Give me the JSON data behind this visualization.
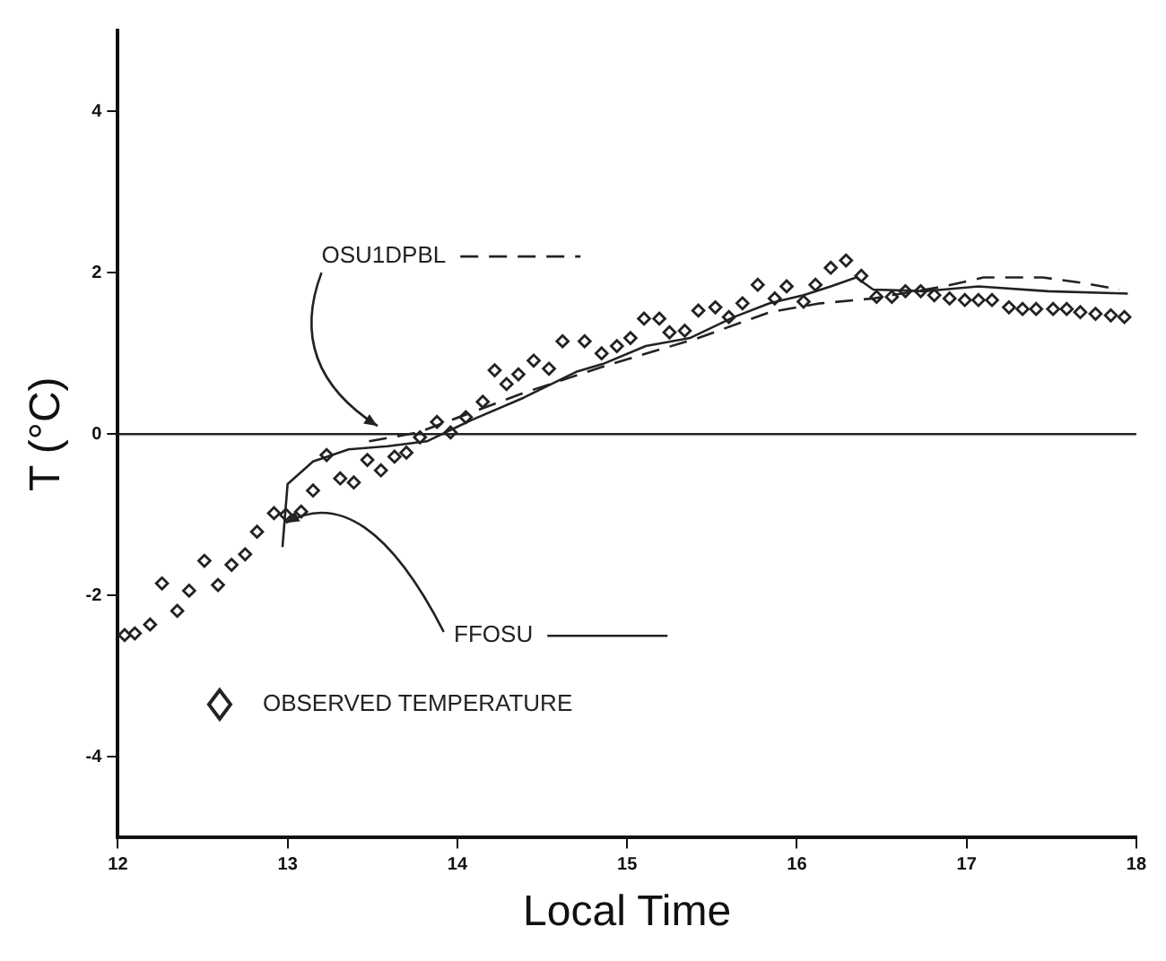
{
  "chart_data": {
    "type": "scatter",
    "xlabel": "Local Time",
    "ylabel": "T (°C)",
    "xlim": [
      12,
      18
    ],
    "xticks": [
      12,
      13,
      14,
      15,
      16,
      17,
      18
    ],
    "ylim": [
      -5,
      5
    ],
    "yticks": [
      -4,
      -2,
      0,
      2,
      4
    ],
    "grid": false,
    "ref_lines": [
      {
        "axis": "y",
        "value": 0,
        "color": "#222222"
      }
    ],
    "series": [
      {
        "name": "OSU1DPBL",
        "type": "line",
        "line_style": "dashed",
        "marker": "none",
        "color": "#222222",
        "x": [
          13.48,
          13.77,
          14.39,
          14.91,
          15.42,
          15.84,
          16.14,
          16.45,
          16.87,
          17.1,
          17.45,
          17.69,
          17.9
        ],
        "values": [
          -0.09,
          0.02,
          0.51,
          0.87,
          1.19,
          1.51,
          1.62,
          1.68,
          1.83,
          1.94,
          1.94,
          1.87,
          1.79
        ]
      },
      {
        "name": "FFOSU",
        "type": "line",
        "line_style": "solid",
        "marker": "none",
        "color": "#222222",
        "x": [
          12.97,
          13.0,
          13.15,
          13.36,
          13.59,
          13.82,
          14.08,
          14.39,
          14.7,
          14.86,
          15.11,
          15.37,
          15.63,
          15.84,
          16.04,
          16.2,
          16.35,
          16.45,
          16.76,
          17.07,
          17.48,
          17.95
        ],
        "values": [
          -1.4,
          -0.62,
          -0.34,
          -0.19,
          -0.15,
          -0.09,
          0.17,
          0.45,
          0.77,
          0.87,
          1.09,
          1.19,
          1.45,
          1.62,
          1.72,
          1.83,
          1.94,
          1.79,
          1.77,
          1.83,
          1.77,
          1.74
        ]
      },
      {
        "name": "OBSERVED TEMPERATURE",
        "marker": "diamond",
        "color": "#222222",
        "x": [
          12.04,
          12.1,
          12.19,
          12.26,
          12.35,
          12.42,
          12.51,
          12.59,
          12.67,
          12.75,
          12.82,
          12.92,
          12.99,
          13.08,
          13.15,
          13.23,
          13.31,
          13.39,
          13.47,
          13.55,
          13.63,
          13.7,
          13.78,
          13.88,
          13.96,
          14.05,
          14.15,
          14.22,
          14.29,
          14.36,
          14.45,
          14.54,
          14.62,
          14.75,
          14.85,
          14.94,
          15.02,
          15.1,
          15.19,
          15.25,
          15.34,
          15.42,
          15.52,
          15.6,
          15.68,
          15.77,
          15.87,
          15.94,
          16.04,
          16.11,
          16.2,
          16.29,
          16.38,
          16.47,
          16.56,
          16.64,
          16.73,
          16.81,
          16.9,
          16.99,
          17.07,
          17.15,
          17.25,
          17.33,
          17.41,
          17.51,
          17.59,
          17.67,
          17.76,
          17.85,
          17.93
        ],
        "values": [
          -2.49,
          -2.47,
          -2.36,
          -1.85,
          -2.19,
          -1.94,
          -1.57,
          -1.87,
          -1.62,
          -1.49,
          -1.21,
          -0.98,
          -1.0,
          -0.96,
          -0.7,
          -0.26,
          -0.55,
          -0.6,
          -0.32,
          -0.45,
          -0.28,
          -0.23,
          -0.04,
          0.15,
          0.02,
          0.21,
          0.4,
          0.79,
          0.62,
          0.74,
          0.91,
          0.81,
          1.15,
          1.15,
          1.0,
          1.09,
          1.19,
          1.43,
          1.43,
          1.26,
          1.28,
          1.53,
          1.57,
          1.45,
          1.62,
          1.85,
          1.68,
          1.83,
          1.64,
          1.85,
          2.06,
          2.15,
          1.96,
          1.7,
          1.7,
          1.77,
          1.77,
          1.72,
          1.68,
          1.66,
          1.66,
          1.66,
          1.57,
          1.55,
          1.55,
          1.55,
          1.55,
          1.51,
          1.49,
          1.47,
          1.45
        ]
      }
    ]
  }
}
